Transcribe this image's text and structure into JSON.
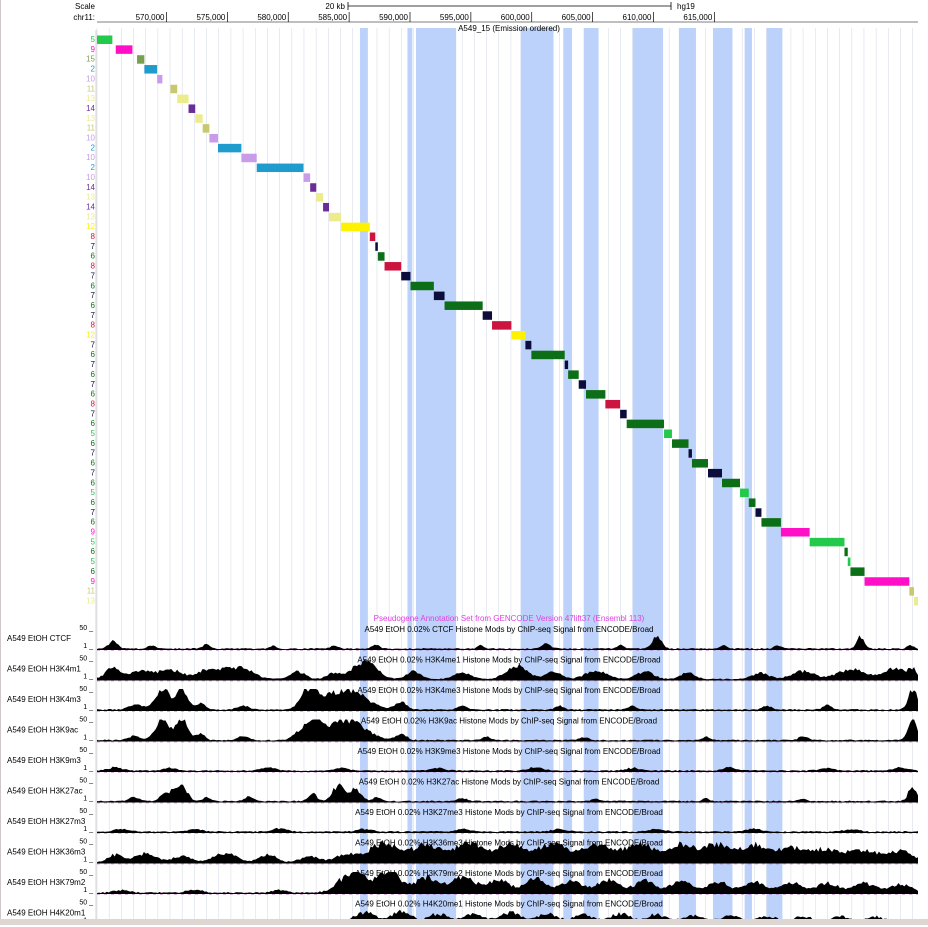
{
  "ruler": {
    "scale_label": "Scale",
    "chrom_label": "chr11:",
    "scale_bar_label": "20 kb",
    "assembly": "hg19",
    "ticks": [
      "570,000",
      "575,000",
      "580,000",
      "585,000",
      "590,000",
      "595,000",
      "600,000",
      "605,000",
      "610,000",
      "615,000"
    ]
  },
  "chromhmm_track": {
    "title": "A549_15 (Emission ordered)",
    "colors": {
      "2": "#1f9ccd",
      "5": "#22c94a",
      "6": "#0c6e16",
      "7": "#0d0d3c",
      "8": "#cc1440",
      "9": "#ff10c8",
      "10": "#c89ce8",
      "11": "#c8c86e",
      "12": "#fff200",
      "13": "#ecec8c",
      "14": "#6a2c96",
      "15": "#78a050"
    },
    "rows": [
      {
        "state": 5,
        "start": 0,
        "end": 1.26
      },
      {
        "state": 9,
        "start": 1.54,
        "end": 2.91
      },
      {
        "state": 15,
        "start": 3.29,
        "end": 3.89
      },
      {
        "state": 2,
        "start": 3.89,
        "end": 4.94
      },
      {
        "state": 10,
        "start": 4.94,
        "end": 5.37
      },
      {
        "state": 11,
        "start": 6.03,
        "end": 6.59
      },
      {
        "state": 13,
        "start": 6.59,
        "end": 7.52
      },
      {
        "state": 14,
        "start": 7.52,
        "end": 8.07
      },
      {
        "state": 13,
        "start": 8.07,
        "end": 8.68
      },
      {
        "state": 11,
        "start": 8.68,
        "end": 9.23
      },
      {
        "state": 10,
        "start": 9.23,
        "end": 9.94
      },
      {
        "state": 2,
        "start": 9.94,
        "end": 11.86
      },
      {
        "state": 10,
        "start": 11.86,
        "end": 13.12
      },
      {
        "state": 2,
        "start": 13.12,
        "end": 16.96
      },
      {
        "state": 10,
        "start": 16.96,
        "end": 17.51
      },
      {
        "state": 14,
        "start": 17.51,
        "end": 18.01
      },
      {
        "state": 13,
        "start": 18.01,
        "end": 18.57
      },
      {
        "state": 14,
        "start": 18.57,
        "end": 19.06
      },
      {
        "state": 13,
        "start": 19.06,
        "end": 20.05
      },
      {
        "state": 12,
        "start": 20.05,
        "end": 22.41
      },
      {
        "state": 8,
        "start": 22.41,
        "end": 22.86
      },
      {
        "state": 7,
        "start": 22.86,
        "end": 23.07
      },
      {
        "state": 6,
        "start": 23.07,
        "end": 23.62
      },
      {
        "state": 8,
        "start": 23.62,
        "end": 24.99
      },
      {
        "state": 7,
        "start": 24.99,
        "end": 25.75
      },
      {
        "state": 6,
        "start": 25.75,
        "end": 27.67
      },
      {
        "state": 7,
        "start": 27.67,
        "end": 28.55
      },
      {
        "state": 6,
        "start": 28.55,
        "end": 31.68
      },
      {
        "state": 7,
        "start": 31.68,
        "end": 32.45
      },
      {
        "state": 8,
        "start": 32.45,
        "end": 34.04
      },
      {
        "state": 12,
        "start": 34.04,
        "end": 35.19
      },
      {
        "state": 7,
        "start": 35.19,
        "end": 35.68
      },
      {
        "state": 6,
        "start": 35.68,
        "end": 38.42
      },
      {
        "state": 7,
        "start": 38.42,
        "end": 38.7
      },
      {
        "state": 6,
        "start": 38.7,
        "end": 39.57
      },
      {
        "state": 7,
        "start": 39.57,
        "end": 40.17
      },
      {
        "state": 6,
        "start": 40.17,
        "end": 41.76
      },
      {
        "state": 8,
        "start": 41.76,
        "end": 42.97
      },
      {
        "state": 7,
        "start": 42.97,
        "end": 43.51
      },
      {
        "state": 6,
        "start": 43.51,
        "end": 46.58
      },
      {
        "state": 5,
        "start": 46.58,
        "end": 47.23
      },
      {
        "state": 6,
        "start": 47.23,
        "end": 48.59
      },
      {
        "state": 7,
        "start": 48.59,
        "end": 48.87
      },
      {
        "state": 6,
        "start": 48.87,
        "end": 50.19
      },
      {
        "state": 7,
        "start": 50.19,
        "end": 51.34
      },
      {
        "state": 6,
        "start": 51.34,
        "end": 52.82
      },
      {
        "state": 5,
        "start": 52.82,
        "end": 53.54
      },
      {
        "state": 6,
        "start": 53.54,
        "end": 54.09
      },
      {
        "state": 7,
        "start": 54.09,
        "end": 54.58
      },
      {
        "state": 6,
        "start": 54.58,
        "end": 56.18
      },
      {
        "state": 9,
        "start": 56.18,
        "end": 58.54
      },
      {
        "state": 5,
        "start": 58.54,
        "end": 61.4
      },
      {
        "state": 6,
        "start": 61.4,
        "end": 61.67
      },
      {
        "state": 5,
        "start": 61.67,
        "end": 61.89
      },
      {
        "state": 6,
        "start": 61.89,
        "end": 63.05
      },
      {
        "state": 9,
        "start": 63.05,
        "end": 66.73
      },
      {
        "state": 11,
        "start": 66.73,
        "end": 67.11
      },
      {
        "state": 13,
        "start": 67.11,
        "end": 67.44
      }
    ]
  },
  "highlight_regions": [
    [
      21.6,
      22.25
    ],
    [
      25.5,
      25.9
    ],
    [
      26.2,
      29.5
    ],
    [
      34.8,
      37.5
    ],
    [
      38.3,
      39.0
    ],
    [
      40.0,
      41.2
    ],
    [
      44.0,
      46.5
    ],
    [
      47.8,
      49.2
    ],
    [
      50.6,
      52.2
    ],
    [
      53.2,
      53.8
    ],
    [
      55.0,
      56.3
    ]
  ],
  "pseudogene_label": "Pseudogene Annotation Set from GENCODE Version 47lift37 (Ensembl 113)",
  "signal_tracks": [
    {
      "label": "A549 EtOH CTCF",
      "title": "A549 EtOH 0.02% CTCF Histone Mods by ChIP-seq Signal from ENCODE/Broad",
      "max": "50 _",
      "min": "1 _",
      "peaks": [
        [
          1.3,
          0.6,
          0.4
        ],
        [
          4.5,
          0.5,
          0.15
        ],
        [
          9.0,
          0.5,
          0.2
        ],
        [
          14.5,
          0.4,
          0.15
        ],
        [
          19.5,
          0.5,
          0.15
        ],
        [
          22.9,
          0.5,
          0.2
        ],
        [
          31.5,
          0.4,
          0.15
        ],
        [
          36.9,
          0.6,
          0.25
        ],
        [
          43.0,
          0.5,
          0.15
        ],
        [
          46.0,
          0.6,
          0.6
        ],
        [
          51.5,
          0.5,
          0.15
        ],
        [
          55.9,
          0.5,
          0.15
        ],
        [
          62.7,
          0.5,
          0.55
        ],
        [
          66.8,
          0.4,
          0.2
        ]
      ]
    },
    {
      "label": "A549 EtOH H3K4m1",
      "title": "A549 EtOH 0.02% H3K4me1 Histone Mods by ChIP-seq Signal from ENCODE/Broad",
      "max": "50 _",
      "min": "1 _",
      "peaks": [
        [
          1.3,
          1.0,
          0.55
        ],
        [
          3.5,
          1.5,
          0.35
        ],
        [
          6.0,
          1.8,
          0.45
        ],
        [
          9.0,
          1.2,
          0.45
        ],
        [
          10.5,
          1.0,
          0.35
        ],
        [
          12.0,
          1.5,
          0.55
        ],
        [
          16.5,
          1.0,
          0.35
        ],
        [
          19.5,
          1.0,
          0.3
        ],
        [
          22.0,
          1.6,
          0.85
        ],
        [
          26.0,
          1.0,
          0.35
        ],
        [
          30.0,
          1.2,
          0.3
        ],
        [
          34.5,
          1.5,
          0.65
        ],
        [
          37.5,
          1.0,
          0.4
        ],
        [
          41.0,
          1.5,
          0.4
        ],
        [
          45.0,
          1.2,
          0.35
        ],
        [
          48.5,
          1.0,
          0.3
        ],
        [
          54.5,
          1.2,
          0.3
        ],
        [
          58.0,
          1.5,
          0.4
        ],
        [
          62.0,
          2.0,
          0.45
        ],
        [
          65.5,
          1.5,
          0.5
        ],
        [
          67.0,
          0.6,
          0.45
        ]
      ]
    },
    {
      "label": "A549 EtOH H3K4m3",
      "title": "A549 EtOH 0.02% H3K4me3 Histone Mods by ChIP-seq Signal from ENCODE/Broad",
      "max": "50 _",
      "min": "1 _",
      "peaks": [
        [
          3.2,
          1.0,
          0.25
        ],
        [
          5.4,
          1.0,
          1.0
        ],
        [
          7.0,
          0.8,
          1.0
        ],
        [
          8.5,
          0.6,
          0.3
        ],
        [
          12.0,
          0.8,
          0.2
        ],
        [
          17.5,
          1.2,
          1.0
        ],
        [
          20.5,
          2.5,
          1.0
        ],
        [
          25.0,
          0.8,
          0.35
        ],
        [
          30.0,
          0.6,
          0.2
        ],
        [
          38.0,
          0.6,
          0.2
        ],
        [
          44.0,
          0.6,
          0.2
        ],
        [
          55.0,
          0.6,
          0.2
        ],
        [
          60.0,
          0.6,
          0.2
        ],
        [
          67.0,
          0.6,
          1.0
        ]
      ]
    },
    {
      "label": "A549 EtOH H3K9ac",
      "title": "A549 EtOH 0.02% H3K9ac Histone Mods by ChIP-seq Signal from ENCODE/Broad",
      "max": "50 _",
      "min": "1 _",
      "peaks": [
        [
          3.0,
          0.8,
          0.2
        ],
        [
          5.4,
          1.0,
          1.0
        ],
        [
          7.0,
          0.8,
          1.0
        ],
        [
          8.5,
          0.6,
          0.3
        ],
        [
          12.0,
          0.8,
          0.2
        ],
        [
          16.5,
          0.8,
          0.35
        ],
        [
          17.8,
          1.0,
          1.0
        ],
        [
          20.5,
          2.5,
          1.0
        ],
        [
          25.0,
          0.8,
          0.25
        ],
        [
          32.0,
          0.6,
          0.15
        ],
        [
          40.0,
          0.6,
          0.15
        ],
        [
          50.0,
          0.6,
          0.15
        ],
        [
          58.0,
          0.6,
          0.2
        ],
        [
          67.0,
          0.6,
          1.0
        ]
      ]
    },
    {
      "label": "A549 EtOH H3K9m3",
      "title": "A549 EtOH 0.02% H3K9me3 Histone Mods by ChIP-seq Signal from ENCODE/Broad",
      "max": "50 _",
      "min": "1 _",
      "peaks": [
        [
          1.5,
          1.0,
          0.15
        ],
        [
          6.0,
          1.0,
          0.12
        ],
        [
          14.0,
          1.0,
          0.15
        ],
        [
          20.0,
          1.0,
          0.12
        ],
        [
          28.0,
          1.0,
          0.12
        ],
        [
          36.0,
          1.0,
          0.15
        ],
        [
          44.0,
          1.0,
          0.12
        ],
        [
          52.0,
          1.0,
          0.15
        ],
        [
          60.0,
          1.0,
          0.12
        ],
        [
          66.0,
          1.0,
          0.15
        ]
      ]
    },
    {
      "label": "A549 EtOH H3K27ac",
      "title": "A549 EtOH 0.02% H3K27ac Histone Mods by ChIP-seq Signal from ENCODE/Broad",
      "max": "50 _",
      "min": "1 _",
      "peaks": [
        [
          3.0,
          0.7,
          0.2
        ],
        [
          5.5,
          0.6,
          0.35
        ],
        [
          6.5,
          0.7,
          0.7
        ],
        [
          7.2,
          0.6,
          0.45
        ],
        [
          9.0,
          0.5,
          0.2
        ],
        [
          12.5,
          0.6,
          0.2
        ],
        [
          17.7,
          0.6,
          0.35
        ],
        [
          19.8,
          0.8,
          0.75
        ],
        [
          21.2,
          0.8,
          0.6
        ],
        [
          23.0,
          0.6,
          0.2
        ],
        [
          30.0,
          0.6,
          0.15
        ],
        [
          41.0,
          0.5,
          0.12
        ],
        [
          50.0,
          0.5,
          0.12
        ],
        [
          58.0,
          0.5,
          0.12
        ],
        [
          67.0,
          0.6,
          0.65
        ]
      ]
    },
    {
      "label": "A549 EtOH H3K27m3",
      "title": "A549 EtOH 0.02% H3K27me3 Histone Mods by ChIP-seq Signal from ENCODE/Broad",
      "max": "50 _",
      "min": "1 _",
      "peaks": [
        [
          2.0,
          1.0,
          0.12
        ],
        [
          8.0,
          1.0,
          0.12
        ],
        [
          15.0,
          1.0,
          0.15
        ],
        [
          22.0,
          1.0,
          0.12
        ],
        [
          30.0,
          1.0,
          0.12
        ],
        [
          38.0,
          1.0,
          0.12
        ],
        [
          46.0,
          1.0,
          0.12
        ],
        [
          54.0,
          1.0,
          0.15
        ],
        [
          62.0,
          1.0,
          0.12
        ]
      ]
    },
    {
      "label": "A549 EtOH H3K36m3",
      "title": "A549 EtOH 0.02% H3K36me3 Histone Mods by ChIP-seq Signal from ENCODE/Broad",
      "max": "50 _",
      "min": "1 _",
      "peaks": [
        [
          1.5,
          1.0,
          0.35
        ],
        [
          4.0,
          1.5,
          0.4
        ],
        [
          7.0,
          1.2,
          0.3
        ],
        [
          10.5,
          1.5,
          0.45
        ],
        [
          14.0,
          1.2,
          0.35
        ],
        [
          17.5,
          1.2,
          0.3
        ],
        [
          20.5,
          1.5,
          0.35
        ],
        [
          23.5,
          2.0,
          0.9
        ],
        [
          27.0,
          2.0,
          0.85
        ],
        [
          30.5,
          2.0,
          0.9
        ],
        [
          34.0,
          2.0,
          0.9
        ],
        [
          37.5,
          2.0,
          0.9
        ],
        [
          41.0,
          2.0,
          0.85
        ],
        [
          44.5,
          2.0,
          0.9
        ],
        [
          48.0,
          2.0,
          0.85
        ],
        [
          51.0,
          1.8,
          0.85
        ],
        [
          54.0,
          1.8,
          0.8
        ],
        [
          57.0,
          2.0,
          0.65
        ],
        [
          60.0,
          2.0,
          0.6
        ],
        [
          63.0,
          2.0,
          0.55
        ],
        [
          66.0,
          1.8,
          0.5
        ]
      ]
    },
    {
      "label": "A549 EtOH H3K79m2",
      "title": "A549 EtOH 0.02% H3K79me2 Histone Mods by ChIP-seq Signal from ENCODE/Broad",
      "max": "50 _",
      "min": "1 _",
      "peaks": [
        [
          2.0,
          1.0,
          0.12
        ],
        [
          8.0,
          1.0,
          0.15
        ],
        [
          15.0,
          1.0,
          0.12
        ],
        [
          21.0,
          1.8,
          1.0
        ],
        [
          24.0,
          1.6,
          1.0
        ],
        [
          27.0,
          1.5,
          0.7
        ],
        [
          30.0,
          1.8,
          0.75
        ],
        [
          33.0,
          1.5,
          0.6
        ],
        [
          36.0,
          1.5,
          0.65
        ],
        [
          39.0,
          1.5,
          0.6
        ],
        [
          42.0,
          1.5,
          0.6
        ],
        [
          45.0,
          1.5,
          0.55
        ],
        [
          48.0,
          1.5,
          0.55
        ],
        [
          51.0,
          1.5,
          0.5
        ],
        [
          54.0,
          1.5,
          0.5
        ],
        [
          57.0,
          1.5,
          0.5
        ],
        [
          60.0,
          1.5,
          0.45
        ],
        [
          63.0,
          1.5,
          0.45
        ],
        [
          66.0,
          1.5,
          0.4
        ]
      ]
    },
    {
      "label": "A549 EtOH H4K20m1",
      "title": "A549 EtOH 0.02% H4K20me1 Histone Mods by ChIP-seq Signal from ENCODE/Broad",
      "max": "50 _",
      "min": "1 _",
      "peaks": [
        [
          2.0,
          1.0,
          0.12
        ],
        [
          10.0,
          1.0,
          0.12
        ],
        [
          18.0,
          1.0,
          0.15
        ],
        [
          22.0,
          1.5,
          0.5
        ],
        [
          25.0,
          1.5,
          0.55
        ],
        [
          28.0,
          1.5,
          0.45
        ],
        [
          31.0,
          1.5,
          0.45
        ],
        [
          34.0,
          1.5,
          0.5
        ],
        [
          37.0,
          1.5,
          0.45
        ],
        [
          40.0,
          1.5,
          0.4
        ],
        [
          43.0,
          1.5,
          0.45
        ],
        [
          46.0,
          1.5,
          0.4
        ],
        [
          49.0,
          1.5,
          0.4
        ],
        [
          52.0,
          1.5,
          0.35
        ],
        [
          55.0,
          1.5,
          0.35
        ],
        [
          58.0,
          1.5,
          0.3
        ],
        [
          61.0,
          1.5,
          0.3
        ],
        [
          64.0,
          1.5,
          0.3
        ]
      ]
    }
  ]
}
